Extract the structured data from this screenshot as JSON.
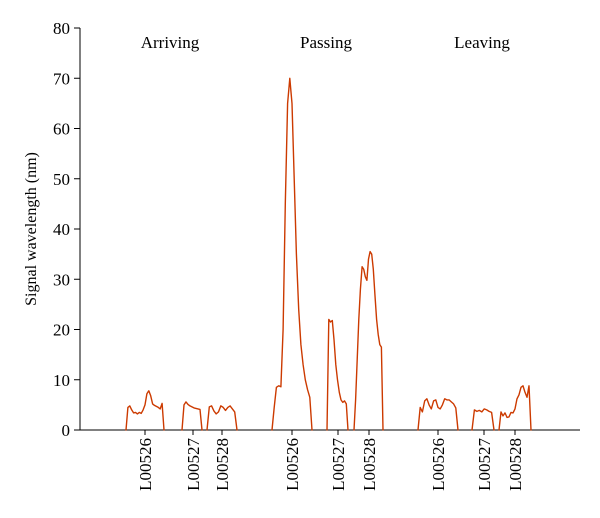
{
  "chart_data": {
    "type": "line",
    "title": "",
    "xlabel": "",
    "ylabel": "Signal wavelength (nm)",
    "ylim": [
      0,
      80
    ],
    "yticks": [
      0,
      10,
      20,
      30,
      40,
      50,
      60,
      70,
      80
    ],
    "grid": false,
    "line_color": "#cc3a00",
    "phases": [
      {
        "label": "Arriving",
        "sensors": [
          "L00526",
          "L00527",
          "L00528"
        ]
      },
      {
        "label": "Passing",
        "sensors": [
          "L00526",
          "L00527",
          "L00528"
        ]
      },
      {
        "label": "Leaving",
        "sensors": [
          "L00526",
          "L00527",
          "L00528"
        ]
      }
    ],
    "series": [
      {
        "phase": "Arriving",
        "sensor": "L00526",
        "values": [
          0,
          4.5,
          4.8,
          4.0,
          3.4,
          3.5,
          3.2,
          3.5,
          3.3,
          4.0,
          5.0,
          7.2,
          7.8,
          6.8,
          5.2,
          4.9,
          4.7,
          4.5,
          4.2,
          5.3,
          0
        ]
      },
      {
        "phase": "Arriving",
        "sensor": "L00527",
        "values": [
          0,
          5.0,
          5.6,
          5.1,
          4.8,
          4.6,
          4.4,
          4.3,
          4.2,
          4.1,
          0
        ]
      },
      {
        "phase": "Arriving",
        "sensor": "L00528",
        "values": [
          0,
          4.6,
          4.8,
          3.8,
          3.2,
          3.6,
          4.8,
          4.5,
          3.9,
          4.5,
          4.8,
          4.2,
          3.6,
          0
        ]
      },
      {
        "phase": "Passing",
        "sensor": "L00526",
        "values": [
          0,
          4.5,
          8.5,
          8.8,
          8.6,
          20,
          45,
          65,
          70,
          65,
          50,
          35,
          24,
          17,
          13,
          10,
          8,
          6.5,
          0
        ]
      },
      {
        "phase": "Passing",
        "sensor": "L00527",
        "values": [
          0,
          22,
          21.5,
          21.8,
          18,
          13,
          10,
          7.5,
          6,
          5.5,
          5.8,
          5.2,
          0
        ]
      },
      {
        "phase": "Passing",
        "sensor": "L00528",
        "values": [
          0,
          6,
          14,
          22,
          28,
          32.5,
          32.0,
          30.5,
          29.8,
          34,
          35.5,
          35,
          32,
          27,
          22,
          19,
          17,
          16.5,
          0
        ]
      },
      {
        "phase": "Leaving",
        "sensor": "L00526",
        "values": [
          0,
          4.5,
          3.6,
          5.8,
          6.2,
          5.0,
          4.2,
          5.8,
          6.0,
          4.5,
          4.2,
          5.0,
          6.2,
          6.0,
          6.0,
          5.6,
          5.2,
          4.4,
          0
        ]
      },
      {
        "phase": "Leaving",
        "sensor": "L00527",
        "values": [
          0,
          4.0,
          3.7,
          3.9,
          3.6,
          4.2,
          4.0,
          3.7,
          3.5,
          0
        ]
      },
      {
        "phase": "Leaving",
        "sensor": "L00528",
        "values": [
          0,
          3.6,
          2.8,
          3.4,
          2.5,
          2.6,
          3.5,
          3.4,
          4.2,
          6.2,
          7.0,
          8.5,
          8.8,
          7.5,
          6.5,
          8.8,
          0
        ]
      }
    ]
  }
}
